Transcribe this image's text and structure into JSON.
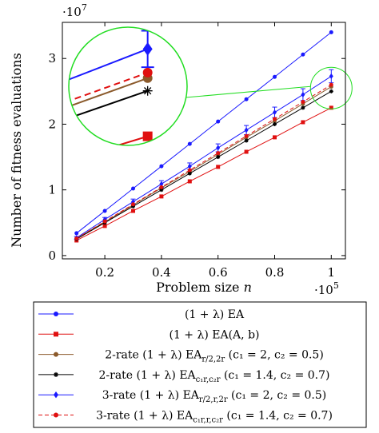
{
  "chart_data": {
    "type": "line",
    "title": "",
    "xlabel": "Problem size n",
    "ylabel": "Number of fitness evaluations",
    "x_multiplier": "·10",
    "x_multiplier_exp": "5",
    "y_multiplier": "·10",
    "y_multiplier_exp": "7",
    "xlim": [
      0.05,
      1.05
    ],
    "ylim": [
      -0.05,
      3.55
    ],
    "x_ticks": [
      0.2,
      0.4,
      0.6,
      0.8,
      1
    ],
    "x_tick_labels": [
      "0.2",
      "0.4",
      "0.6",
      "0.8",
      "1"
    ],
    "y_ticks": [
      0,
      1,
      2,
      3
    ],
    "y_tick_labels": [
      "0",
      "1",
      "2",
      "3"
    ],
    "grid": false,
    "x": [
      0.1,
      0.2,
      0.3,
      0.4,
      0.5,
      0.6,
      0.7,
      0.8,
      0.9,
      1.0
    ],
    "series": [
      {
        "name": "(1 + λ) EA",
        "color": "#1a1aff",
        "marker": "circle",
        "values": [
          0.34,
          0.68,
          1.02,
          1.36,
          1.7,
          2.04,
          2.38,
          2.72,
          3.06,
          3.4
        ]
      },
      {
        "name": "(1 + λ) EA(A, b)",
        "color": "#e01010",
        "marker": "square",
        "values": [
          0.23,
          0.45,
          0.68,
          0.9,
          1.13,
          1.35,
          1.58,
          1.8,
          2.03,
          2.25
        ]
      },
      {
        "name": "2-rate (1 + λ) EA_{r/2,2r} (c1 = 2, c2 = 0.5)",
        "color": "#8b5a2b",
        "marker": "circle",
        "values": [
          0.26,
          0.51,
          0.77,
          1.03,
          1.28,
          1.54,
          1.8,
          2.05,
          2.31,
          2.57
        ]
      },
      {
        "name": "2-rate (1 + λ) EA_{c1r,c2r} (c1 = 1.4, c2 = 0.7)",
        "color": "#000000",
        "marker": "star",
        "values": [
          0.25,
          0.5,
          0.75,
          1.0,
          1.25,
          1.5,
          1.75,
          2.0,
          2.25,
          2.5
        ]
      },
      {
        "name": "3-rate (1 + λ) EA_{r/2,r,2r} (c1 = 2, c2 = 0.5)",
        "color": "#1a1aff",
        "marker": "diamond",
        "values": [
          0.27,
          0.55,
          0.82,
          1.09,
          1.36,
          1.64,
          1.91,
          2.18,
          2.45,
          2.73
        ],
        "errors": [
          0.02,
          0.03,
          0.04,
          0.05,
          0.05,
          0.06,
          0.07,
          0.08,
          0.09,
          0.1
        ]
      },
      {
        "name": "3-rate (1 + λ) EA_{c1r,r,c2r} (c1 = 1.4, c2 = 0.7)",
        "color": "#e01010",
        "marker": "circle",
        "dashed": true,
        "values": [
          0.26,
          0.52,
          0.78,
          1.04,
          1.3,
          1.56,
          1.82,
          2.08,
          2.34,
          2.6
        ]
      }
    ],
    "legend": {
      "placement": "bottom",
      "entries": [
        {
          "prefix": "(1 + λ) EA",
          "sub": "",
          "suffix": ""
        },
        {
          "prefix": "(1 + λ) EA(A, b)",
          "sub": "",
          "suffix": ""
        },
        {
          "prefix": "2-rate (1 + λ) EA",
          "sub": "r/2,2r",
          "suffix": " (c₁ = 2, c₂ = 0.5)"
        },
        {
          "prefix": "2-rate (1 + λ) EA",
          "sub": "c₁r,c₂r",
          "suffix": " (c₁ = 1.4, c₂ = 0.7)"
        },
        {
          "prefix": "3-rate (1 + λ) EA",
          "sub": "r/2,r,2r",
          "suffix": " (c₁ = 2, c₂ = 0.5)"
        },
        {
          "prefix": "3-rate (1 + λ) EA",
          "sub": "c₁r,r,c₂r",
          "suffix": " (c₁ = 1.4, c₂ = 0.7)"
        }
      ]
    },
    "inset": {
      "shape": "circle",
      "color": "#22dd22",
      "zoom_x": 1.0,
      "zoom_y_range": [
        2.2,
        2.85
      ]
    }
  }
}
